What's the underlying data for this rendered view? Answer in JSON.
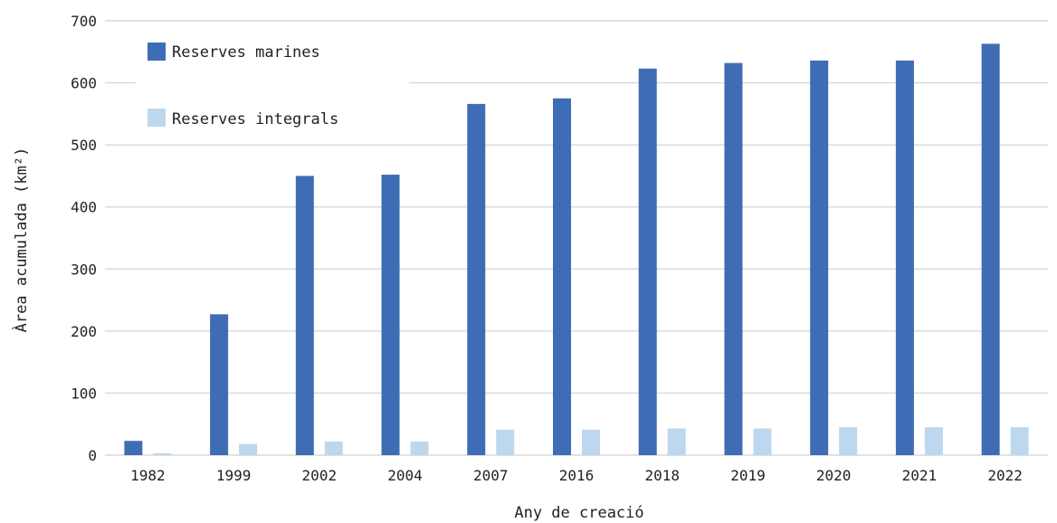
{
  "chart_data": {
    "type": "bar",
    "categories": [
      "1982",
      "1999",
      "2002",
      "2004",
      "2007",
      "2016",
      "2018",
      "2019",
      "2020",
      "2021",
      "2022"
    ],
    "series": [
      {
        "name": "Reserves marines",
        "color": "#3f6db5",
        "values": [
          23,
          227,
          450,
          452,
          566,
          575,
          623,
          632,
          636,
          636,
          663
        ]
      },
      {
        "name": "Reserves integrals",
        "color": "#bdd7ee",
        "values": [
          3,
          18,
          22,
          22,
          41,
          41,
          43,
          43,
          45,
          45,
          45
        ]
      }
    ],
    "title": "",
    "xlabel": "Any de creació",
    "ylabel": "Àrea acumulada (km²)",
    "ylim": [
      0,
      700
    ],
    "yticks": [
      0,
      100,
      200,
      300,
      400,
      500,
      600,
      700
    ],
    "grid": true,
    "legend_position": "top-left"
  }
}
